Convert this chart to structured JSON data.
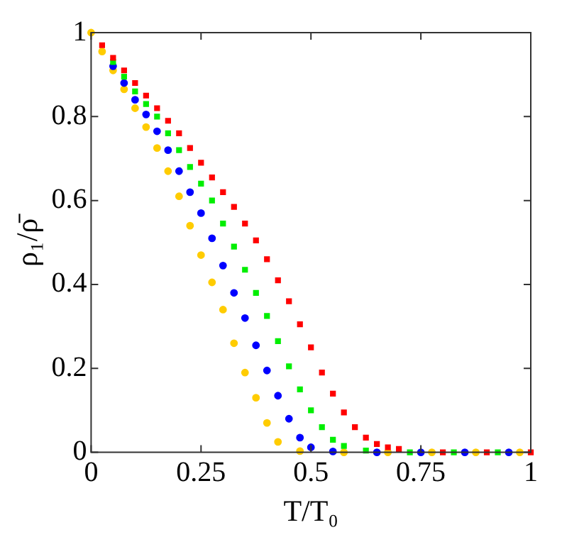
{
  "chart_data": {
    "type": "scatter",
    "xlabel": "T/T₀",
    "ylabel": "ρ₁/ρ̄",
    "xlim": [
      0,
      1
    ],
    "ylim": [
      0,
      1
    ],
    "xticks": [
      0,
      0.25,
      0.5,
      0.75,
      1
    ],
    "yticks": [
      0,
      0.2,
      0.4,
      0.6,
      0.8,
      1
    ],
    "grid": false,
    "legend": false,
    "x": [
      0,
      0.025,
      0.05,
      0.075,
      0.1,
      0.125,
      0.15,
      0.175,
      0.2,
      0.225,
      0.25,
      0.275,
      0.3,
      0.325,
      0.35,
      0.375,
      0.4,
      0.425,
      0.45,
      0.475,
      0.5,
      0.525,
      0.55,
      0.575,
      0.6,
      0.625,
      0.65,
      0.675,
      0.7,
      0.725,
      0.75,
      0.775,
      0.8,
      0.825,
      0.85,
      0.875,
      0.9,
      0.925,
      0.95,
      0.975,
      1
    ],
    "series": [
      {
        "color": "#ff0000",
        "marker": "square",
        "values": [
          null,
          0.97,
          0.94,
          0.91,
          0.88,
          0.85,
          0.82,
          0.79,
          0.76,
          0.725,
          0.69,
          0.655,
          0.62,
          0.585,
          0.545,
          0.505,
          0.46,
          0.41,
          0.36,
          0.305,
          0.25,
          0.19,
          0.14,
          0.095,
          0.06,
          0.035,
          0.02,
          0.012,
          0.008,
          null,
          null,
          null,
          0,
          null,
          null,
          null,
          0,
          null,
          null,
          null,
          0
        ]
      },
      {
        "color": "#00ee00",
        "marker": "square",
        "values": [
          null,
          null,
          0.93,
          0.895,
          0.86,
          0.83,
          0.8,
          0.76,
          0.72,
          0.68,
          0.64,
          0.6,
          0.545,
          0.49,
          0.435,
          0.38,
          0.325,
          0.265,
          0.205,
          0.15,
          0.1,
          0.06,
          0.03,
          0.015,
          null,
          0.004,
          null,
          null,
          null,
          0,
          null,
          null,
          null,
          0,
          null,
          null,
          null,
          0,
          null,
          null,
          null
        ]
      },
      {
        "color": "#0000ff",
        "marker": "circle",
        "values": [
          null,
          null,
          0.92,
          0.88,
          0.84,
          0.805,
          0.765,
          0.72,
          0.67,
          0.62,
          0.57,
          0.51,
          0.445,
          0.38,
          0.32,
          0.255,
          0.195,
          0.135,
          0.08,
          0.035,
          0.012,
          null,
          0.002,
          null,
          null,
          null,
          0,
          null,
          null,
          null,
          0,
          null,
          null,
          null,
          0,
          null,
          null,
          null,
          0,
          null,
          null
        ]
      },
      {
        "color": "#ffcc00",
        "marker": "circle",
        "values": [
          1,
          0.955,
          0.91,
          0.865,
          0.82,
          0.775,
          0.725,
          0.67,
          0.61,
          0.54,
          0.47,
          0.405,
          0.34,
          0.26,
          0.19,
          0.13,
          0.07,
          0.025,
          null,
          0.003,
          null,
          null,
          null,
          0,
          null,
          null,
          null,
          0,
          null,
          null,
          null,
          0,
          null,
          null,
          null,
          0,
          null,
          null,
          null,
          0,
          null
        ]
      }
    ]
  }
}
